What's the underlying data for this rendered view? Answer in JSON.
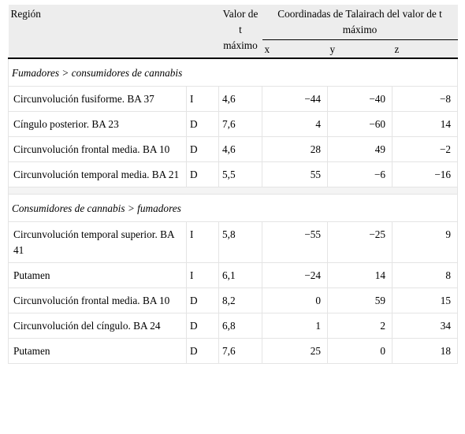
{
  "header": {
    "region": "Región",
    "tvalue": "Valor de t máximo",
    "coords": "Coordinadas de Talairach del valor de t máximo",
    "x": "x",
    "y": "y",
    "z": "z"
  },
  "sections": [
    {
      "title": "Fumadores > consumidores de cannabis",
      "rows": [
        {
          "region": "Circunvolución fusiforme. BA 37",
          "side": "I",
          "t": "4,6",
          "x": "−44",
          "y": "−40",
          "z": "−8"
        },
        {
          "region": "Cíngulo posterior. BA 23",
          "side": "D",
          "t": "7,6",
          "x": "4",
          "y": "−60",
          "z": "14"
        },
        {
          "region": "Circunvolución frontal media. BA 10",
          "side": "D",
          "t": "4,6",
          "x": "28",
          "y": "49",
          "z": "−2"
        },
        {
          "region": "Circunvolución temporal media. BA 21",
          "side": "D",
          "t": "5,5",
          "x": "55",
          "y": "−6",
          "z": "−16"
        }
      ]
    },
    {
      "title": "Consumidores de cannabis > fumadores",
      "rows": [
        {
          "region": "Circunvolución temporal superior. BA 41",
          "side": "I",
          "t": "5,8",
          "x": "−55",
          "y": "−25",
          "z": "9"
        },
        {
          "region": "Putamen",
          "side": "I",
          "t": "6,1",
          "x": "−24",
          "y": "14",
          "z": "8"
        },
        {
          "region": "Circunvolución frontal media. BA 10",
          "side": "D",
          "t": "8,2",
          "x": "0",
          "y": "59",
          "z": "15"
        },
        {
          "region": "Circunvolución del cíngulo. BA 24",
          "side": "D",
          "t": "6,8",
          "x": "1",
          "y": "2",
          "z": "34"
        },
        {
          "region": "Putamen",
          "side": "D",
          "t": "7,6",
          "x": "25",
          "y": "0",
          "z": "18"
        }
      ]
    }
  ]
}
